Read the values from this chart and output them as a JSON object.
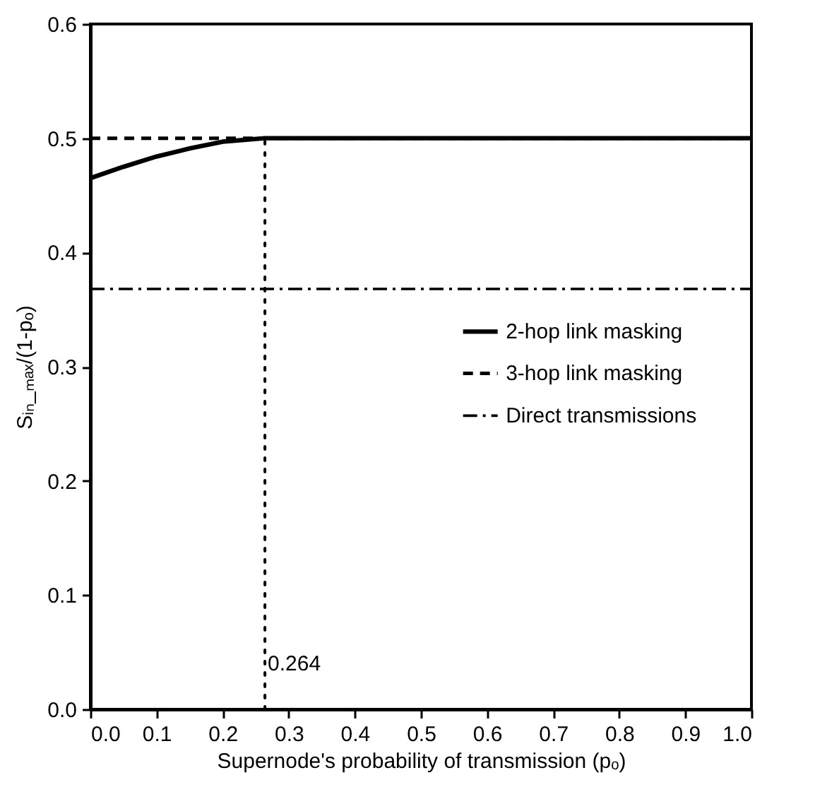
{
  "chart_data": {
    "type": "line",
    "xlabel": "Supernode's probability of transmission (pₒ)",
    "ylabel": "Sᵢₙ_ₘₐₓ/(1-pₒ)",
    "xlim": [
      0,
      1
    ],
    "xticks": [
      {
        "value": 0,
        "label": "0.0"
      },
      0.1,
      0.2,
      0.3,
      0.4,
      0.5,
      0.6,
      0.7,
      0.8,
      0.9,
      {
        "value": 1,
        "label": "1.0"
      }
    ],
    "ylim": [
      0,
      0.6
    ],
    "yticks": [
      {
        "value": 0,
        "label": "0.0"
      },
      0.1,
      0.2,
      0.3,
      0.4,
      0.5,
      0.6
    ],
    "grid": false,
    "legend": "right",
    "marker": "none",
    "annotations": [
      {
        "text": "0.264",
        "x": 0.264,
        "y": 0.04
      }
    ],
    "series": [
      {
        "name": "2-hop link masking",
        "color": "#000000",
        "line_style": "solid",
        "x": [
          0,
          0.05,
          0.1,
          0.15,
          0.2,
          0.264,
          1
        ],
        "values": [
          0.465,
          0.475,
          0.484,
          0.491,
          0.497,
          0.5,
          0.5
        ]
      },
      {
        "name": "3-hop link masking",
        "color": "#000000",
        "line_style": "dashed",
        "x": [
          0,
          1
        ],
        "values": [
          0.5,
          0.5
        ]
      },
      {
        "name": "Direct transmissions",
        "color": "#000000",
        "line_style": "dashdot",
        "x": [
          0,
          1
        ],
        "values": [
          0.368,
          0.368
        ]
      },
      {
        "color": "#000000",
        "line_style": "dotted",
        "x": [
          0.264,
          0.264
        ],
        "values": [
          0,
          0.5
        ]
      }
    ]
  }
}
